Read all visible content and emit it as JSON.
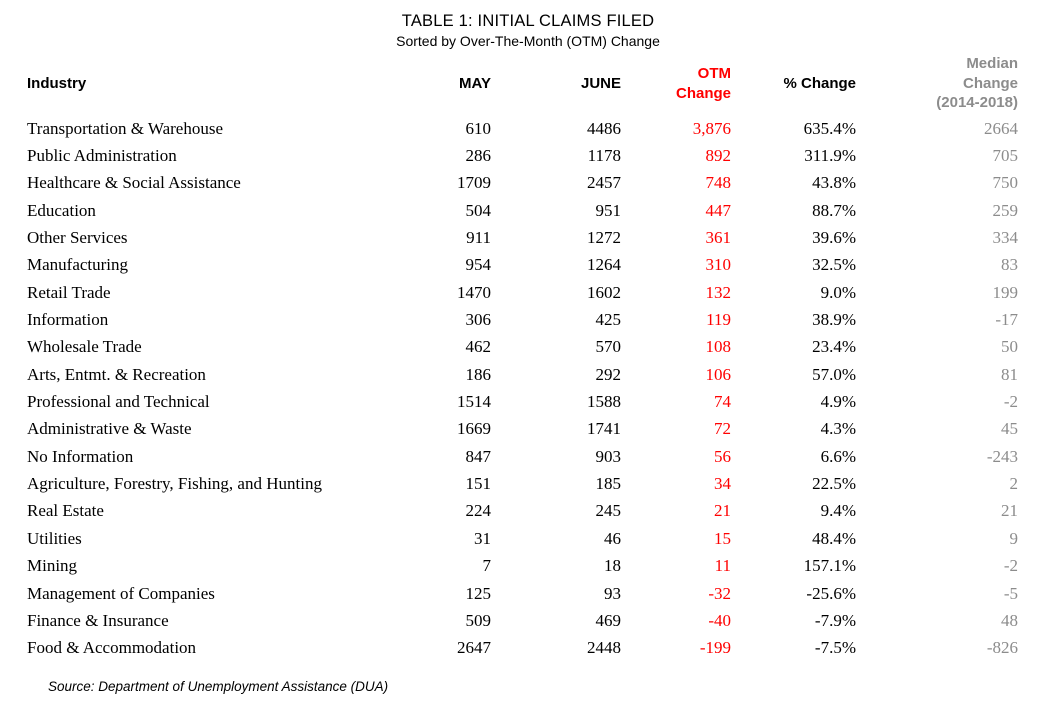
{
  "chart_data": {
    "type": "table",
    "title": "TABLE 1: INITIAL CLAIMS FILED",
    "subtitle": "Sorted by Over-The-Month (OTM) Change",
    "columns": [
      {
        "id": "industry",
        "label": "Industry",
        "align": "left"
      },
      {
        "id": "may",
        "label": "MAY",
        "align": "right"
      },
      {
        "id": "june",
        "label": "JUNE",
        "align": "right"
      },
      {
        "id": "otm",
        "label": "OTM\nChange",
        "align": "right",
        "color": "#ff0000"
      },
      {
        "id": "pct",
        "label": "% Change",
        "align": "right"
      },
      {
        "id": "median",
        "label": "Median\nChange\n(2014-2018)",
        "align": "right",
        "color": "#8c8c8c"
      }
    ],
    "rows": [
      {
        "industry": "Transportation & Warehouse",
        "may": "610",
        "june": "4486",
        "otm": "3,876",
        "pct": "635.4%",
        "median": "2664"
      },
      {
        "industry": "Public Administration",
        "may": "286",
        "june": "1178",
        "otm": "892",
        "pct": "311.9%",
        "median": "705"
      },
      {
        "industry": "Healthcare & Social Assistance",
        "may": "1709",
        "june": "2457",
        "otm": "748",
        "pct": "43.8%",
        "median": "750"
      },
      {
        "industry": "Education",
        "may": "504",
        "june": "951",
        "otm": "447",
        "pct": "88.7%",
        "median": "259"
      },
      {
        "industry": "Other Services",
        "may": "911",
        "june": "1272",
        "otm": "361",
        "pct": "39.6%",
        "median": "334"
      },
      {
        "industry": "Manufacturing",
        "may": "954",
        "june": "1264",
        "otm": "310",
        "pct": "32.5%",
        "median": "83"
      },
      {
        "industry": "Retail Trade",
        "may": "1470",
        "june": "1602",
        "otm": "132",
        "pct": "9.0%",
        "median": "199"
      },
      {
        "industry": "Information",
        "may": "306",
        "june": "425",
        "otm": "119",
        "pct": "38.9%",
        "median": "-17"
      },
      {
        "industry": "Wholesale Trade",
        "may": "462",
        "june": "570",
        "otm": "108",
        "pct": "23.4%",
        "median": "50"
      },
      {
        "industry": "Arts, Entmt. & Recreation",
        "may": "186",
        "june": "292",
        "otm": "106",
        "pct": "57.0%",
        "median": "81"
      },
      {
        "industry": "Professional and Technical",
        "may": "1514",
        "june": "1588",
        "otm": "74",
        "pct": "4.9%",
        "median": "-2"
      },
      {
        "industry": "Administrative & Waste",
        "may": "1669",
        "june": "1741",
        "otm": "72",
        "pct": "4.3%",
        "median": "45"
      },
      {
        "industry": "No Information",
        "may": "847",
        "june": "903",
        "otm": "56",
        "pct": "6.6%",
        "median": "-243"
      },
      {
        "industry": "Agriculture, Forestry, Fishing, and Hunting",
        "may": "151",
        "june": "185",
        "otm": "34",
        "pct": "22.5%",
        "median": "2"
      },
      {
        "industry": "Real Estate",
        "may": "224",
        "june": "245",
        "otm": "21",
        "pct": "9.4%",
        "median": "21"
      },
      {
        "industry": "Utilities",
        "may": "31",
        "june": "46",
        "otm": "15",
        "pct": "48.4%",
        "median": "9"
      },
      {
        "industry": "Mining",
        "may": "7",
        "june": "18",
        "otm": "11",
        "pct": "157.1%",
        "median": "-2"
      },
      {
        "industry": "Management of Companies",
        "may": "125",
        "june": "93",
        "otm": "-32",
        "pct": "-25.6%",
        "median": "-5"
      },
      {
        "industry": "Finance & Insurance",
        "may": "509",
        "june": "469",
        "otm": "-40",
        "pct": "-7.9%",
        "median": "48"
      },
      {
        "industry": "Food & Accommodation",
        "may": "2647",
        "june": "2448",
        "otm": "-199",
        "pct": "-7.5%",
        "median": "-826"
      }
    ]
  },
  "source": "Source: Department of Unemployment Assistance (DUA)",
  "colors": {
    "text": "#000000",
    "background": "#ffffff",
    "otm_change": "#ff0000",
    "median_change": "#8c8c8c"
  }
}
